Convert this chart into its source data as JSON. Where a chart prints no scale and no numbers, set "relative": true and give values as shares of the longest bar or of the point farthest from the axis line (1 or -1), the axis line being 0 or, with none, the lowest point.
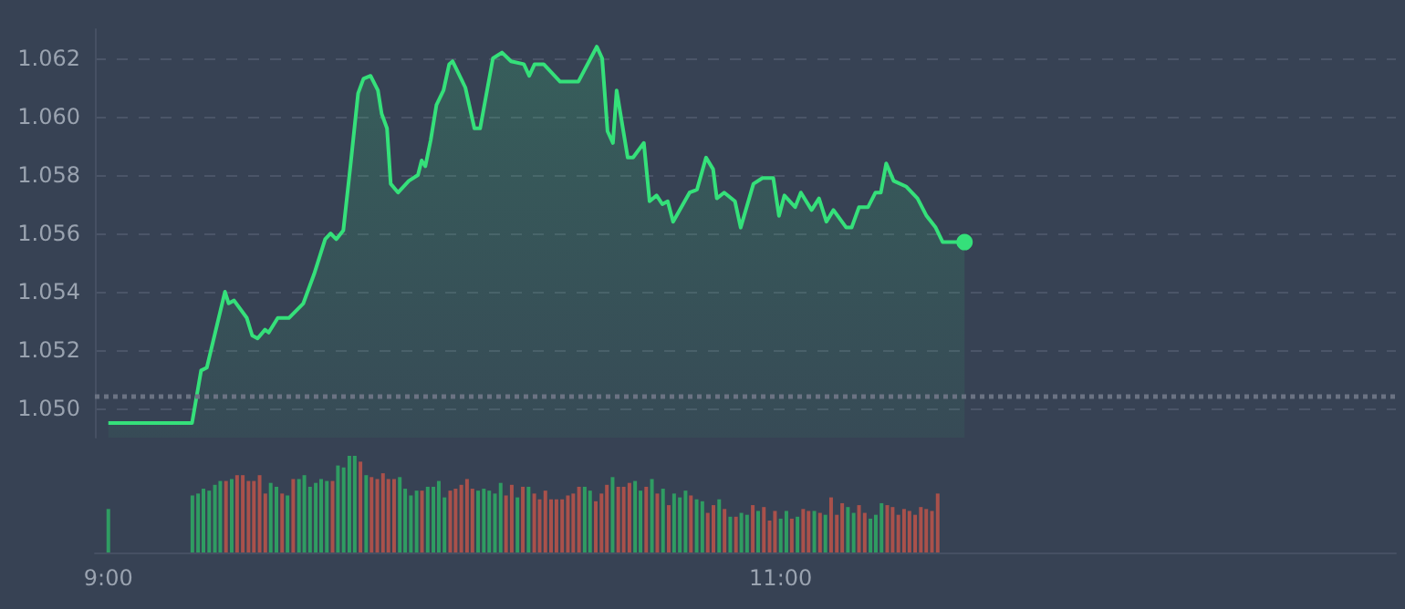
{
  "chart_data": [
    {
      "type": "area",
      "color": "#35e07a",
      "x": [
        9,
        9.249,
        9.276,
        9.293,
        9.347,
        9.358,
        9.374,
        9.412,
        9.428,
        9.444,
        9.466,
        9.477,
        9.504,
        9.537,
        9.58,
        9.612,
        9.645,
        9.661,
        9.678,
        9.699,
        9.721,
        9.743,
        9.759,
        9.78,
        9.802,
        9.813,
        9.829,
        9.84,
        9.862,
        9.894,
        9.921,
        9.932,
        9.943,
        9.959,
        9.976,
        9.997,
        10.014,
        10.024,
        10.062,
        10.089,
        10.106,
        10.144,
        10.171,
        10.198,
        10.236,
        10.252,
        10.268,
        10.295,
        10.344,
        10.398,
        10.453,
        10.469,
        10.485,
        10.501,
        10.512,
        10.545,
        10.561,
        10.593,
        10.61,
        10.631,
        10.648,
        10.664,
        10.68,
        10.729,
        10.751,
        10.778,
        10.799,
        10.81,
        10.832,
        10.864,
        10.881,
        10.919,
        10.946,
        10.978,
        10.995,
        11.011,
        11.043,
        11.06,
        11.092,
        11.114,
        11.136,
        11.157,
        11.195,
        11.211,
        11.233,
        11.26,
        11.282,
        11.298,
        11.314,
        11.336,
        11.374,
        11.407,
        11.434,
        11.461,
        11.482,
        11.547
      ],
      "values": [
        1.0495,
        1.0495,
        1.0513,
        1.0514,
        1.054,
        1.0536,
        1.0537,
        1.0531,
        1.0525,
        1.0524,
        1.0527,
        1.0526,
        1.0531,
        1.0531,
        1.0536,
        1.0546,
        1.0558,
        1.056,
        1.0558,
        1.0561,
        1.0584,
        1.0608,
        1.0613,
        1.0614,
        1.0609,
        1.0601,
        1.0596,
        1.0577,
        1.0574,
        1.0578,
        1.058,
        1.0585,
        1.0583,
        1.0592,
        1.0604,
        1.0609,
        1.0618,
        1.0619,
        1.061,
        1.0596,
        1.0596,
        1.062,
        1.0622,
        1.0619,
        1.0618,
        1.0614,
        1.0618,
        1.0618,
        1.0612,
        1.0612,
        1.0624,
        1.062,
        1.0595,
        1.0591,
        1.0609,
        1.0586,
        1.0586,
        1.0591,
        1.0571,
        1.0573,
        1.057,
        1.0571,
        1.0564,
        1.0574,
        1.0575,
        1.0586,
        1.0582,
        1.0572,
        1.0574,
        1.0571,
        1.0562,
        1.0577,
        1.0579,
        1.0579,
        1.0566,
        1.0573,
        1.0569,
        1.0574,
        1.0568,
        1.0572,
        1.0564,
        1.0568,
        1.0562,
        1.0562,
        1.0569,
        1.0569,
        1.0574,
        1.0574,
        1.0584,
        1.0578,
        1.0576,
        1.0572,
        1.0566,
        1.0562,
        1.0557,
        1.0557
      ],
      "xlim": [
        8.96,
        12.83
      ],
      "ylim": [
        1.049,
        1.063
      ],
      "yticks": [
        {
          "value": 1.05,
          "label": "1.050"
        },
        1.052,
        1.054,
        1.056,
        1.058,
        {
          "value": 1.06,
          "label": "1.060"
        },
        1.062
      ],
      "ref_lines": [
        {
          "axis": "y",
          "value": 1.0504,
          "color": "#6b7383",
          "line_style": "dotted"
        }
      ],
      "grid": "y",
      "tick_labels": "y"
    },
    {
      "type": "bar",
      "relative": true,
      "x": [
        9,
        9.25,
        9.267,
        9.283,
        9.3,
        9.317,
        9.333,
        9.35,
        9.367,
        9.383,
        9.4,
        9.417,
        9.433,
        9.45,
        9.467,
        9.483,
        9.5,
        9.517,
        9.533,
        9.55,
        9.567,
        9.583,
        9.6,
        9.617,
        9.633,
        9.65,
        9.667,
        9.683,
        9.7,
        9.717,
        9.733,
        9.75,
        9.767,
        9.783,
        9.8,
        9.817,
        9.833,
        9.85,
        9.867,
        9.883,
        9.9,
        9.917,
        9.933,
        9.95,
        9.967,
        9.983,
        10,
        10.017,
        10.033,
        10.05,
        10.067,
        10.083,
        10.1,
        10.117,
        10.133,
        10.15,
        10.167,
        10.183,
        10.2,
        10.217,
        10.233,
        10.25,
        10.267,
        10.283,
        10.3,
        10.317,
        10.333,
        10.35,
        10.367,
        10.383,
        10.4,
        10.417,
        10.433,
        10.45,
        10.467,
        10.483,
        10.5,
        10.517,
        10.533,
        10.55,
        10.567,
        10.583,
        10.6,
        10.617,
        10.633,
        10.65,
        10.667,
        10.683,
        10.7,
        10.717,
        10.733,
        10.75,
        10.767,
        10.783,
        10.8,
        10.817,
        10.833,
        10.85,
        10.867,
        10.883,
        10.9,
        10.917,
        10.933,
        10.95,
        10.967,
        10.983,
        11,
        11.017,
        11.033,
        11.05,
        11.067,
        11.083,
        11.1,
        11.117,
        11.133,
        11.15,
        11.167,
        11.183,
        11.2,
        11.217,
        11.233,
        11.25,
        11.267,
        11.283,
        11.3,
        11.317,
        11.333,
        11.35,
        11.367,
        11.383,
        11.4,
        11.417,
        11.433,
        11.45,
        11.467
      ],
      "values": [
        0.45,
        0.59,
        0.61,
        0.66,
        0.64,
        0.7,
        0.74,
        0.74,
        0.76,
        0.8,
        0.8,
        0.74,
        0.74,
        0.8,
        0.61,
        0.72,
        0.68,
        0.61,
        0.59,
        0.76,
        0.76,
        0.8,
        0.68,
        0.72,
        0.76,
        0.74,
        0.74,
        0.9,
        0.88,
        1,
        1,
        0.94,
        0.8,
        0.78,
        0.76,
        0.82,
        0.76,
        0.76,
        0.78,
        0.66,
        0.59,
        0.64,
        0.64,
        0.68,
        0.68,
        0.74,
        0.57,
        0.64,
        0.66,
        0.7,
        0.76,
        0.66,
        0.64,
        0.66,
        0.64,
        0.61,
        0.72,
        0.59,
        0.7,
        0.57,
        0.68,
        0.68,
        0.61,
        0.55,
        0.64,
        0.55,
        0.55,
        0.55,
        0.59,
        0.61,
        0.68,
        0.68,
        0.64,
        0.53,
        0.61,
        0.7,
        0.78,
        0.68,
        0.68,
        0.72,
        0.74,
        0.64,
        0.68,
        0.76,
        0.61,
        0.66,
        0.49,
        0.61,
        0.57,
        0.64,
        0.59,
        0.55,
        0.53,
        0.41,
        0.49,
        0.55,
        0.45,
        0.37,
        0.37,
        0.41,
        0.39,
        0.49,
        0.43,
        0.47,
        0.33,
        0.43,
        0.35,
        0.43,
        0.35,
        0.37,
        0.45,
        0.43,
        0.43,
        0.41,
        0.39,
        0.57,
        0.39,
        0.51,
        0.47,
        0.41,
        0.49,
        0.41,
        0.35,
        0.39,
        0.51,
        0.49,
        0.47,
        0.39,
        0.45,
        0.43,
        0.39,
        0.47,
        0.45,
        0.43,
        0.61
      ],
      "colors": [
        "#2f9c62",
        "#2f9c62",
        "#2f9c62",
        "#2f9c62",
        "#2f9c62",
        "#2f9c62",
        "#2f9c62",
        "#a9514b",
        "#2f9c62",
        "#a9514b",
        "#a9514b",
        "#a9514b",
        "#a9514b",
        "#a9514b",
        "#a9514b",
        "#2f9c62",
        "#2f9c62",
        "#a9514b",
        "#2f9c62",
        "#a9514b",
        "#2f9c62",
        "#2f9c62",
        "#2f9c62",
        "#2f9c62",
        "#2f9c62",
        "#2f9c62",
        "#a9514b",
        "#2f9c62",
        "#2f9c62",
        "#2f9c62",
        "#2f9c62",
        "#a9514b",
        "#2f9c62",
        "#a9514b",
        "#a9514b",
        "#a9514b",
        "#a9514b",
        "#a9514b",
        "#2f9c62",
        "#2f9c62",
        "#2f9c62",
        "#2f9c62",
        "#a9514b",
        "#2f9c62",
        "#2f9c62",
        "#2f9c62",
        "#2f9c62",
        "#a9514b",
        "#a9514b",
        "#a9514b",
        "#a9514b",
        "#a9514b",
        "#2f9c62",
        "#2f9c62",
        "#2f9c62",
        "#2f9c62",
        "#2f9c62",
        "#a9514b",
        "#a9514b",
        "#2f9c62",
        "#a9514b",
        "#2f9c62",
        "#a9514b",
        "#a9514b",
        "#a9514b",
        "#a9514b",
        "#a9514b",
        "#a9514b",
        "#a9514b",
        "#a9514b",
        "#a9514b",
        "#2f9c62",
        "#2f9c62",
        "#a9514b",
        "#a9514b",
        "#a9514b",
        "#2f9c62",
        "#a9514b",
        "#a9514b",
        "#a9514b",
        "#2f9c62",
        "#2f9c62",
        "#a9514b",
        "#2f9c62",
        "#a9514b",
        "#2f9c62",
        "#a9514b",
        "#2f9c62",
        "#2f9c62",
        "#2f9c62",
        "#a9514b",
        "#2f9c62",
        "#2f9c62",
        "#a9514b",
        "#a9514b",
        "#2f9c62",
        "#a9514b",
        "#2f9c62",
        "#a9514b",
        "#2f9c62",
        "#2f9c62",
        "#a9514b",
        "#2f9c62",
        "#a9514b",
        "#a9514b",
        "#a9514b",
        "#2f9c62",
        "#2f9c62",
        "#a9514b",
        "#2f9c62",
        "#a9514b",
        "#a9514b",
        "#2f9c62",
        "#a9514b",
        "#2f9c62",
        "#a9514b",
        "#a9514b",
        "#a9514b",
        "#2f9c62",
        "#2f9c62",
        "#a9514b",
        "#a9514b",
        "#2f9c62",
        "#2f9c62",
        "#2f9c62",
        "#a9514b",
        "#a9514b",
        "#a9514b",
        "#a9514b",
        "#a9514b",
        "#a9514b",
        "#a9514b",
        "#a9514b",
        "#a9514b",
        "#a9514b"
      ],
      "xlim": [
        8.96,
        12.83
      ],
      "xticks": [
        {
          "value": 9,
          "label": "9:00"
        },
        {
          "value": 11,
          "label": "11:00"
        }
      ],
      "tick_labels": "x"
    }
  ]
}
